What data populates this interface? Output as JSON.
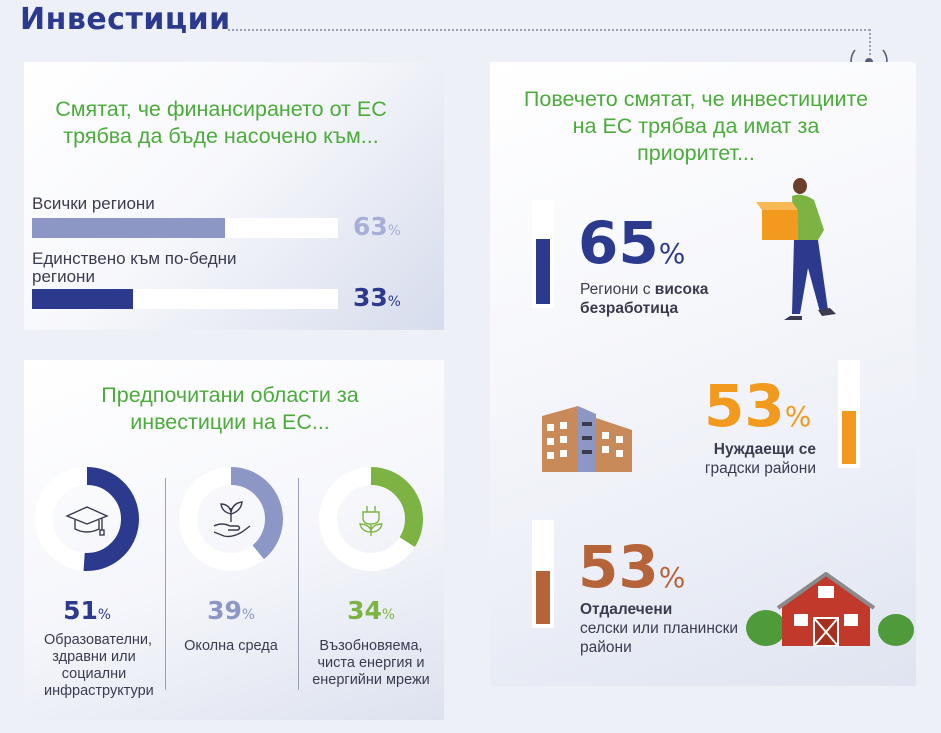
{
  "header": {
    "title": "Инвестиции"
  },
  "funding": {
    "heading": "Смятат, че финансирането от ЕС трябва да бъде насочено към...",
    "bars": [
      {
        "label": "Всички региони",
        "value": 63,
        "pct": "63",
        "unit": "%",
        "color": "#8d97c6",
        "pct_color": "#a7afd6"
      },
      {
        "label": "Единствено към по-бедни региони",
        "value": 33,
        "pct": "33",
        "unit": "%",
        "color": "#2b3a8c",
        "pct_color": "#2b3a8c"
      }
    ]
  },
  "areas": {
    "heading": "Предпочитани области за инвестиции на ЕС...",
    "items": [
      {
        "pct": "51",
        "value": 51,
        "unit": "%",
        "label": "Образователни, здравни или социални инфраструктури",
        "color": "#2b3a8c",
        "icon": "graduation-cap-icon"
      },
      {
        "pct": "39",
        "value": 39,
        "unit": "%",
        "label": "Околна среда",
        "color": "#8d97c6",
        "icon": "hand-plant-icon"
      },
      {
        "pct": "34",
        "value": 34,
        "unit": "%",
        "label": "Възобновяема, чиста енергия и енергийни мрежи",
        "color": "#7cb342",
        "icon": "energy-plug-icon"
      }
    ]
  },
  "priorities": {
    "heading": "Повечето смятат, че инвестициите на ЕС трябва да имат за приоритет...",
    "items": [
      {
        "pct": "65",
        "value": 65,
        "unit": "%",
        "label_plain": "Региони с ",
        "label_bold": "висока безработица",
        "color": "#2b3a8c",
        "icon": "worker-with-box-icon"
      },
      {
        "pct": "53",
        "value": 53,
        "unit": "%",
        "label_bold": "Нуждаещи се",
        "label_plain": "градски райони",
        "color": "#f29a1e",
        "icon": "city-buildings-icon"
      },
      {
        "pct": "53",
        "value": 53,
        "unit": "%",
        "label_bold": "Отдалечени",
        "label_plain": "селски или планински райони",
        "color": "#b5643a",
        "icon": "farm-barn-icon"
      }
    ]
  }
}
